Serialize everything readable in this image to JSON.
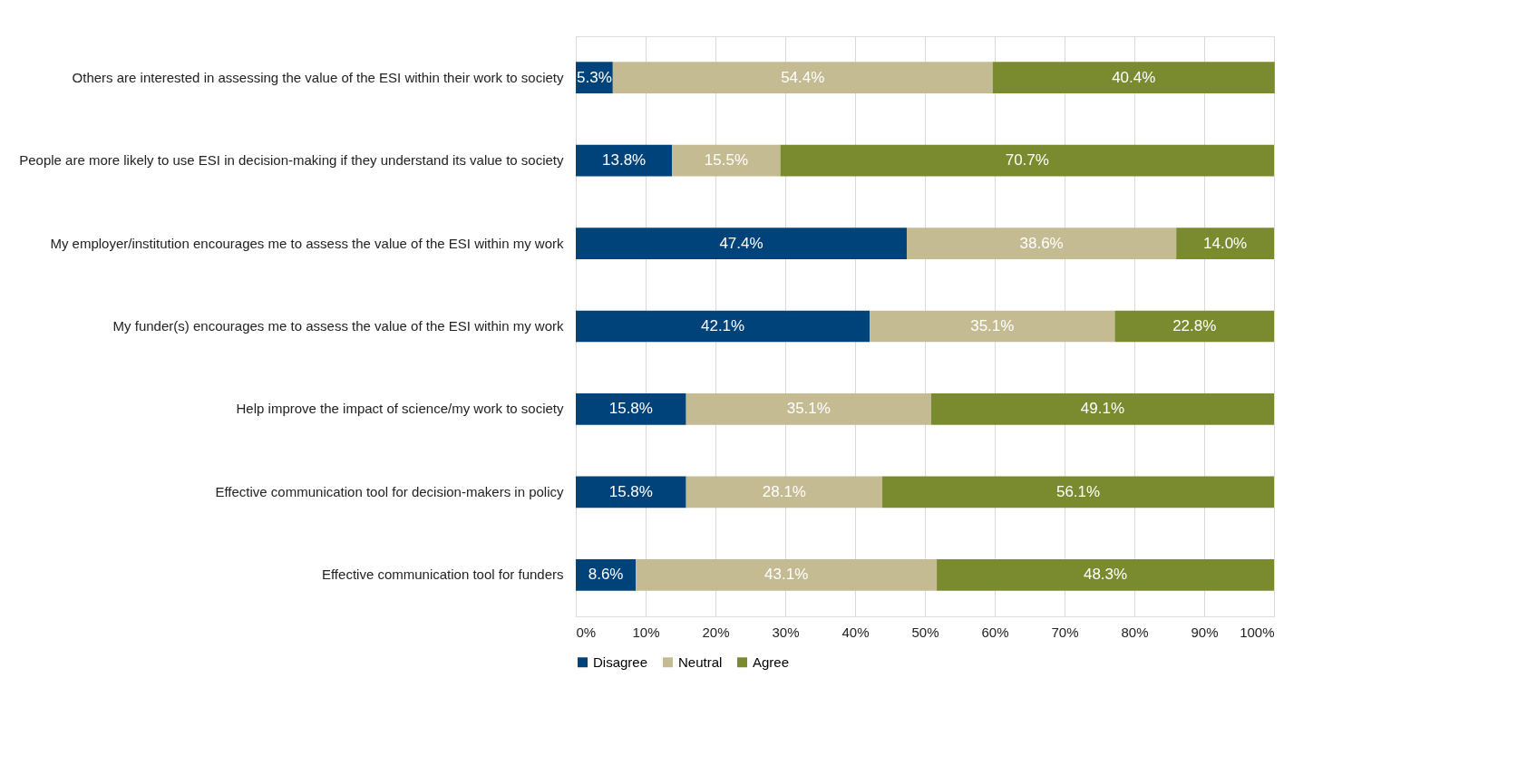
{
  "chart_data": {
    "type": "bar",
    "orientation": "horizontal",
    "stacked": true,
    "categories": [
      "Others are interested in assessing the value of the ESI within their work to society",
      "People are more likely to use ESI in decision-making if they understand its value to society",
      "My employer/institution encourages me to assess the value of the ESI within my work",
      "My funder(s) encourages me to assess the value of the ESI within my work",
      "Help improve the impact of science/my work to society",
      "Effective communication tool for decision-makers in policy",
      "Effective communication tool for funders"
    ],
    "series": [
      {
        "name": "Disagree",
        "color": "#00427a",
        "values": [
          5.3,
          13.8,
          47.4,
          42.1,
          15.8,
          15.8,
          8.6
        ],
        "value_labels": [
          "5.3%",
          "13.8%",
          "47.4%",
          "42.1%",
          "15.8%",
          "15.8%",
          "8.6%"
        ]
      },
      {
        "name": "Neutral",
        "color": "#c4bb93",
        "values": [
          54.4,
          15.5,
          38.6,
          35.1,
          35.1,
          28.1,
          43.1
        ],
        "value_labels": [
          "54.4%",
          "15.5%",
          "38.6%",
          "35.1%",
          "35.1%",
          "28.1%",
          "43.1%"
        ]
      },
      {
        "name": "Agree",
        "color": "#7a8a2e",
        "values": [
          40.4,
          70.7,
          14.0,
          22.8,
          49.1,
          56.1,
          48.3
        ],
        "value_labels": [
          "40.4%",
          "70.7%",
          "14.0%",
          "22.8%",
          "49.1%",
          "56.1%",
          "48.3%"
        ]
      }
    ],
    "xlim": [
      0,
      100
    ],
    "xticks": [
      {
        "value": 0,
        "label": "0%"
      },
      {
        "value": 10,
        "label": "10%"
      },
      {
        "value": 20,
        "label": "20%"
      },
      {
        "value": 30,
        "label": "30%"
      },
      {
        "value": 40,
        "label": "40%"
      },
      {
        "value": 50,
        "label": "50%"
      },
      {
        "value": 60,
        "label": "60%"
      },
      {
        "value": 70,
        "label": "70%"
      },
      {
        "value": 80,
        "label": "80%"
      },
      {
        "value": 90,
        "label": "90%"
      },
      {
        "value": 100,
        "label": "100%"
      }
    ],
    "grid": "x",
    "legend": "bottom"
  }
}
